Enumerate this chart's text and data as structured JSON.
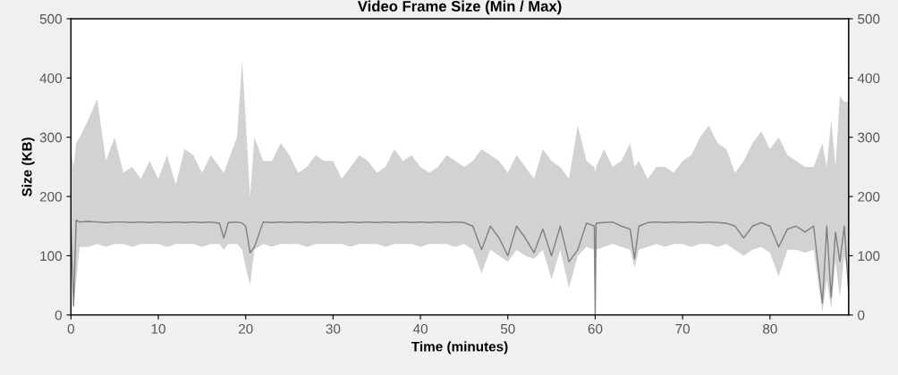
{
  "chart_data": {
    "type": "line",
    "title": "Video Frame Size (Min / Max)",
    "xlabel": "Time (minutes)",
    "ylabel": "Size (KB)",
    "xlim": [
      0,
      89
    ],
    "xticks": [
      0,
      10,
      20,
      30,
      40,
      50,
      60,
      70,
      80
    ],
    "ylim": [
      0,
      500
    ],
    "yticks": [
      0,
      100,
      200,
      300,
      400,
      500
    ],
    "y2lim": [
      0,
      500
    ],
    "y2ticks": [
      0,
      100,
      200,
      300,
      400,
      500
    ],
    "grid": false,
    "legend": false,
    "marker": "none",
    "line_style": "solid",
    "x": [
      0,
      0.3,
      0.6,
      1,
      2,
      3,
      4,
      5,
      6,
      7,
      8,
      9,
      10,
      11,
      12,
      13,
      14,
      15,
      16,
      17,
      17.5,
      18,
      19,
      19.6,
      20,
      20.5,
      21,
      22,
      23,
      24,
      25,
      26,
      27,
      28,
      29,
      30,
      31,
      32,
      33,
      34,
      35,
      36,
      37,
      38,
      39,
      40,
      41,
      42,
      43,
      44,
      45,
      46,
      47,
      48,
      49,
      50,
      51,
      52,
      53,
      54,
      55,
      56,
      57,
      58,
      59,
      59.9,
      60,
      60.1,
      61,
      62,
      63,
      64,
      64.5,
      65,
      66,
      67,
      68,
      69,
      70,
      71,
      72,
      73,
      74,
      75,
      76,
      77,
      78,
      79,
      80,
      81,
      82,
      83,
      84,
      85,
      86,
      86.5,
      87,
      87.5,
      88,
      88.5,
      89
    ],
    "series": [
      {
        "color": "#7f7f7f",
        "upper": [
          280,
          250,
          290,
          300,
          330,
          365,
          260,
          300,
          240,
          250,
          230,
          260,
          230,
          270,
          220,
          280,
          270,
          240,
          270,
          250,
          240,
          260,
          300,
          430,
          330,
          200,
          300,
          260,
          260,
          290,
          270,
          240,
          250,
          270,
          260,
          260,
          230,
          250,
          270,
          260,
          240,
          250,
          280,
          260,
          270,
          250,
          240,
          250,
          270,
          260,
          250,
          260,
          280,
          270,
          260,
          240,
          270,
          250,
          230,
          280,
          260,
          250,
          230,
          320,
          260,
          250,
          240,
          250,
          280,
          250,
          260,
          290,
          250,
          260,
          230,
          250,
          250,
          240,
          260,
          270,
          300,
          320,
          290,
          280,
          240,
          260,
          290,
          310,
          280,
          300,
          270,
          260,
          250,
          250,
          290,
          250,
          330,
          250,
          370,
          360,
          360
        ],
        "lower": [
          120,
          10,
          60,
          115,
          115,
          120,
          115,
          120,
          120,
          115,
          120,
          120,
          120,
          115,
          120,
          120,
          120,
          115,
          120,
          120,
          110,
          120,
          120,
          110,
          80,
          50,
          110,
          120,
          115,
          120,
          120,
          120,
          115,
          120,
          120,
          120,
          120,
          115,
          120,
          120,
          120,
          115,
          120,
          120,
          120,
          115,
          120,
          120,
          120,
          115,
          120,
          110,
          70,
          110,
          100,
          90,
          110,
          100,
          95,
          110,
          60,
          110,
          45,
          100,
          115,
          110,
          0,
          110,
          115,
          120,
          115,
          110,
          80,
          110,
          115,
          120,
          115,
          120,
          120,
          115,
          120,
          120,
          115,
          120,
          110,
          100,
          110,
          115,
          105,
          65,
          110,
          110,
          105,
          110,
          5,
          60,
          10,
          90,
          30,
          100,
          60
        ],
        "values": [
          150,
          15,
          160,
          157,
          158,
          157,
          156,
          157,
          157,
          156,
          157,
          156,
          157,
          156,
          157,
          156,
          157,
          156,
          157,
          155,
          130,
          156,
          157,
          155,
          150,
          105,
          115,
          157,
          156,
          157,
          156,
          157,
          156,
          157,
          156,
          157,
          156,
          157,
          156,
          157,
          156,
          157,
          156,
          157,
          156,
          157,
          156,
          157,
          156,
          157,
          156,
          150,
          110,
          150,
          130,
          100,
          150,
          130,
          105,
          145,
          100,
          150,
          90,
          110,
          155,
          150,
          0,
          155,
          156,
          157,
          150,
          145,
          95,
          150,
          156,
          157,
          156,
          157,
          156,
          157,
          156,
          157,
          156,
          155,
          150,
          130,
          150,
          156,
          150,
          115,
          145,
          150,
          140,
          150,
          20,
          150,
          30,
          140,
          90,
          150,
          40
        ]
      }
    ]
  }
}
